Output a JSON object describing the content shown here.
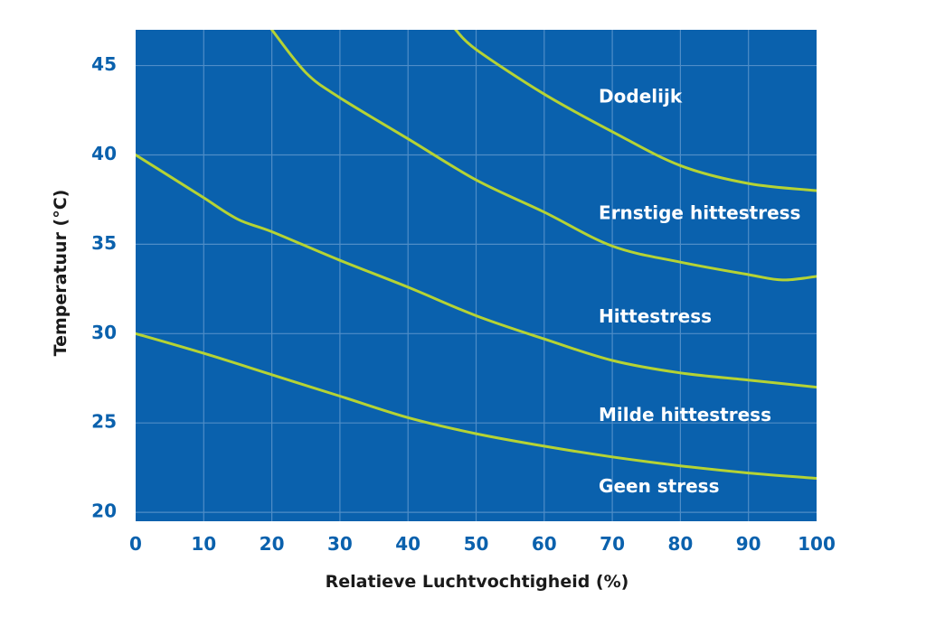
{
  "chart_data": {
    "type": "line",
    "xlabel": "Relatieve Luchtvochtigheid (%)",
    "ylabel": "Temperatuur (°C)",
    "xlim": [
      0,
      100
    ],
    "ylim": [
      19.5,
      47
    ],
    "x_ticks": [
      0,
      10,
      20,
      30,
      40,
      50,
      60,
      70,
      80,
      90,
      100
    ],
    "y_ticks": [
      20,
      25,
      30,
      35,
      40,
      45
    ],
    "grid": true,
    "colors": {
      "plot_background": "#0A61AD",
      "grid": "#4F8DC7",
      "curve": "#B5D334",
      "tick_text": "#0A61AD",
      "zone_label": "#FFFFFF"
    },
    "series": [
      {
        "x": [
          0,
          10,
          20,
          30,
          40,
          50,
          60,
          70,
          80,
          90,
          100
        ],
        "y": [
          30.0,
          28.9,
          27.7,
          26.5,
          25.3,
          24.4,
          23.7,
          23.1,
          22.6,
          22.2,
          21.9
        ]
      },
      {
        "x": [
          0,
          5,
          10,
          15,
          20,
          30,
          40,
          50,
          60,
          70,
          80,
          90,
          100
        ],
        "y": [
          40.0,
          38.8,
          37.6,
          36.4,
          35.7,
          34.1,
          32.6,
          31.0,
          29.7,
          28.5,
          27.8,
          27.4,
          27.0
        ]
      },
      {
        "x": [
          20,
          25,
          30,
          40,
          50,
          60,
          70,
          80,
          90,
          95,
          100
        ],
        "y": [
          47.0,
          44.6,
          43.2,
          40.9,
          38.6,
          36.8,
          34.9,
          34.0,
          33.3,
          33.0,
          33.2
        ]
      },
      {
        "x": [
          47,
          50,
          60,
          70,
          80,
          90,
          100
        ],
        "y": [
          47.0,
          45.9,
          43.4,
          41.3,
          39.4,
          38.4,
          38.0
        ]
      }
    ],
    "zones": [
      {
        "label": "Dodelijk",
        "x": 68,
        "y": 43.2
      },
      {
        "label": "Ernstige hittestress",
        "x": 68,
        "y": 36.7
      },
      {
        "label": "Hittestress",
        "x": 68,
        "y": 30.9
      },
      {
        "label": "Milde hittestress",
        "x": 68,
        "y": 25.4
      },
      {
        "label": "Geen stress",
        "x": 68,
        "y": 21.4
      }
    ]
  }
}
